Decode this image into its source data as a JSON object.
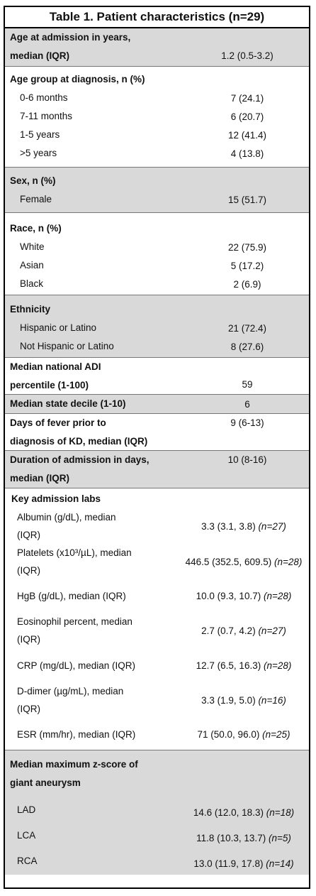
{
  "title": "Table 1. Patient characteristics (n=29)",
  "rows": {
    "age": {
      "label1": "Age at admission in years,",
      "label2": "median (IQR)",
      "value": "1.2 (0.5-3.2)"
    },
    "age_group": {
      "label": "Age group at diagnosis, n (%)",
      "items": [
        {
          "label": "0-6 months",
          "value": "7 (24.1)"
        },
        {
          "label": "7-11 months",
          "value": "6 (20.7)"
        },
        {
          "label": "1-5 years",
          "value": "12 (41.4)"
        },
        {
          "label": ">5 years",
          "value": "4 (13.8)"
        }
      ]
    },
    "sex": {
      "label": "Sex, n (%)",
      "items": [
        {
          "label": "Female",
          "value": "15 (51.7)"
        }
      ]
    },
    "race": {
      "label": "Race, n (%)",
      "items": [
        {
          "label": "White",
          "value": "22 (75.9)"
        },
        {
          "label": "Asian",
          "value": "5 (17.2)"
        },
        {
          "label": "Black",
          "value": "2 (6.9)"
        }
      ]
    },
    "ethnicity": {
      "label": "Ethnicity",
      "items": [
        {
          "label": "Hispanic or Latino",
          "value": "21 (72.4)"
        },
        {
          "label": "Not Hispanic or Latino",
          "value": "8 (27.6)"
        }
      ]
    },
    "adi": {
      "label1": "Median national ADI",
      "label2": "percentile (1-100)",
      "value": "59"
    },
    "state_decile": {
      "label": "Median state decile (1-10)",
      "value": "6"
    },
    "fever": {
      "label1": "Days of fever prior to",
      "label2": "diagnosis of KD, median (IQR)",
      "value": "9 (6-13)"
    },
    "duration": {
      "label1": "Duration of admission in days,",
      "label2": "median (IQR)",
      "value": "10 (8-16)"
    },
    "labs": {
      "label": "Key admission labs",
      "items": [
        {
          "label1": "Albumin (g/dL), median",
          "label2": "(IQR)",
          "value": "3.3 (3.1, 3.8) ",
          "n": "(n=27)"
        },
        {
          "label1": "Platelets (x10³/µL), median",
          "label2": "(IQR)",
          "value": "446.5 (352.5, 609.5) ",
          "n": "(n=28)"
        },
        {
          "label1": "HgB (g/dL), median (IQR)",
          "label2": "",
          "value": "10.0 (9.3, 10.7) ",
          "n": "(n=28)"
        },
        {
          "label1": "Eosinophil percent, median",
          "label2": "(IQR)",
          "value": "2.7 (0.7, 4.2) ",
          "n": "(n=27)"
        },
        {
          "label1": "CRP (mg/dL), median (IQR)",
          "label2": "",
          "value": "12.7 (6.5, 16.3) ",
          "n": "(n=28)"
        },
        {
          "label1": "D-dimer (µg/mL), median",
          "label2": "(IQR)",
          "value": "3.3 (1.9, 5.0) ",
          "n": "(n=16)"
        },
        {
          "label1": "ESR (mm/hr), median (IQR)",
          "label2": "",
          "value": "71 (50.0, 96.0) ",
          "n": "(n=25)"
        }
      ]
    },
    "zscore": {
      "label1": "Median maximum z-score of",
      "label2": "giant aneurysm",
      "items": [
        {
          "label": "LAD",
          "value": "14.6 (12.0, 18.3) ",
          "n": "(n=18)"
        },
        {
          "label": "LCA",
          "value": "11.8 (10.3, 13.7) ",
          "n": "(n=5)"
        },
        {
          "label": "RCA",
          "value": "13.0 (11.9, 17.8) ",
          "n": "(n=14)"
        }
      ]
    }
  }
}
